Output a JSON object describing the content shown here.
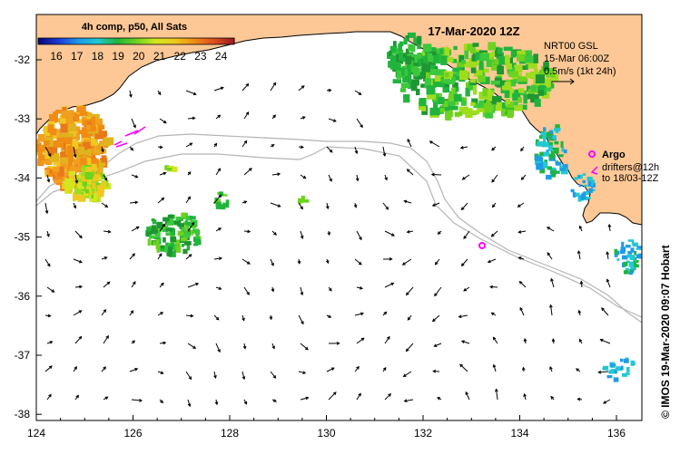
{
  "title": "17-Mar-2020 12Z",
  "legend": {
    "title": "4h comp, p50, All Sats",
    "ticks": [
      "16",
      "17",
      "18",
      "19",
      "20",
      "21",
      "22",
      "23",
      "24"
    ],
    "colors": [
      "#0a0a80",
      "#1e3cdc",
      "#1e9be8",
      "#22c8d2",
      "#20b43c",
      "#6ed21e",
      "#d2e61e",
      "#f0c81e",
      "#f08c14",
      "#e0501e",
      "#a01e1e"
    ]
  },
  "current_info": {
    "source": "NRT00 GSL",
    "time": "15-Mar 06:00Z",
    "scale": "0.5m/s (1kt 24h)"
  },
  "argo_label": "Argo",
  "drifters_line1": "drifters@12h",
  "drifters_line2": "to 18/03-12Z",
  "credit": "© IMOS 19-Mar-2020 09:07 Hobart",
  "axes": {
    "x_ticks": [
      "124",
      "126",
      "128",
      "130",
      "132",
      "134",
      "136"
    ],
    "y_ticks": [
      "-32",
      "-33",
      "-34",
      "-35",
      "-36",
      "-37",
      "-38"
    ]
  },
  "colors": {
    "land": "#fdc896",
    "ocean": "#ffffff",
    "coast": "#000000",
    "isobath": "#b4b4b4",
    "marker": "#ff00ff"
  }
}
